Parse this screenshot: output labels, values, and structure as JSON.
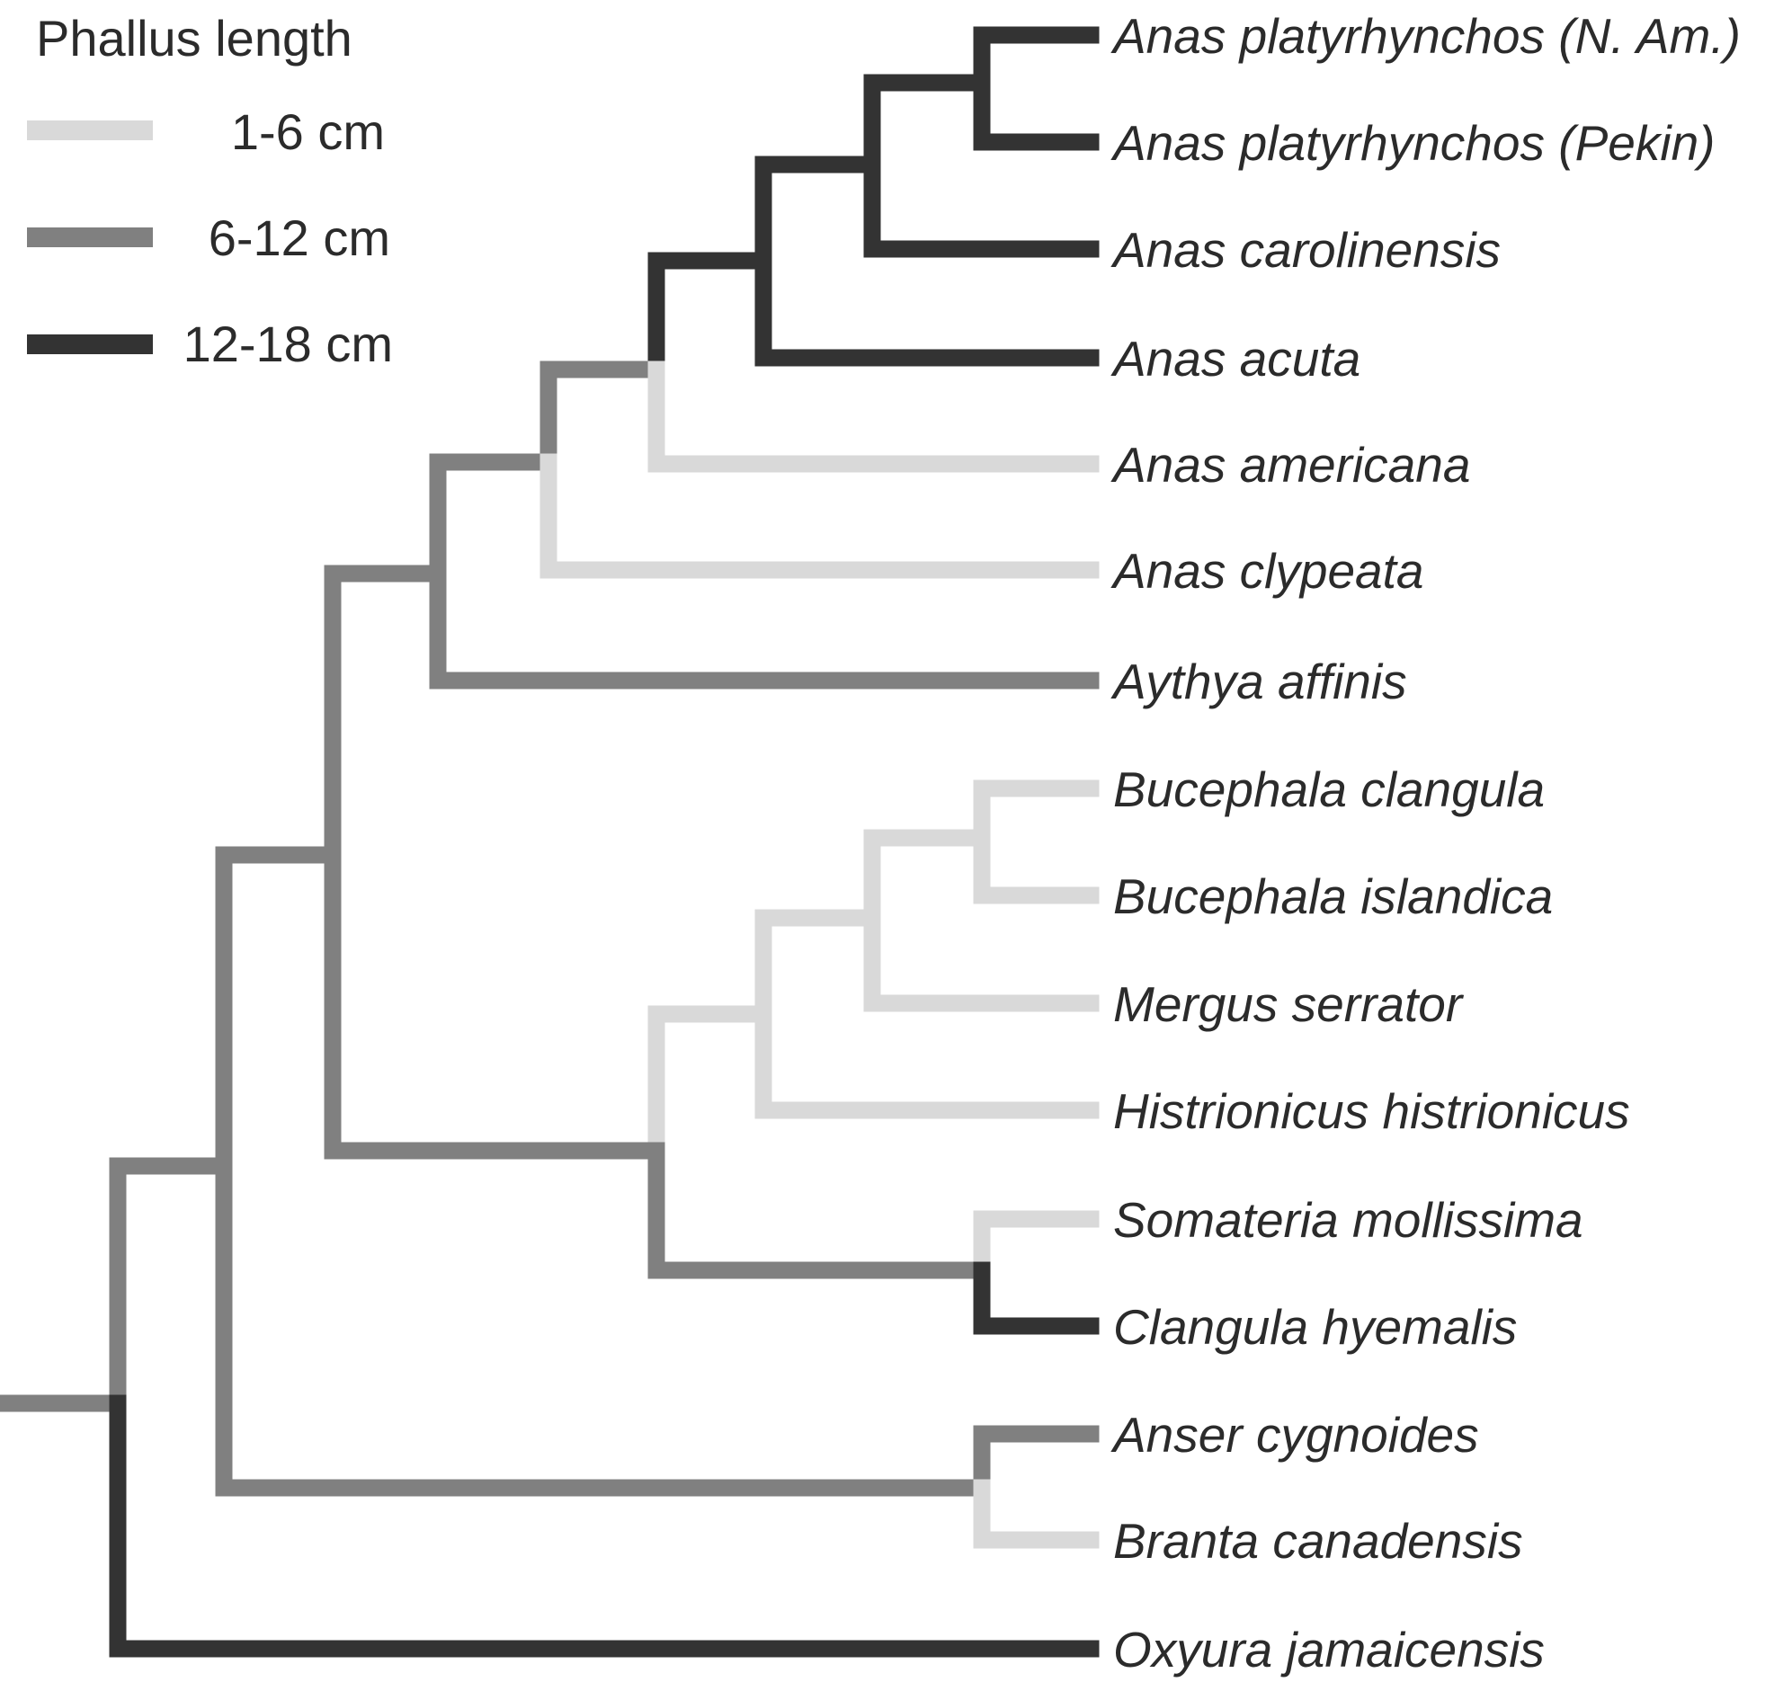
{
  "legend": {
    "title": "Phallus length",
    "items": [
      {
        "label": "1-6 cm",
        "state": "short"
      },
      {
        "label": "6-12 cm",
        "state": "medium"
      },
      {
        "label": "12-18 cm",
        "state": "long"
      }
    ]
  },
  "colors": {
    "short": "#d9d9d9",
    "medium": "#808080",
    "long": "#333333"
  },
  "taxa": [
    "Anas platyrhynchos (N. Am.)",
    "Anas platyrhynchos (Pekin)",
    "Anas carolinensis",
    "Anas acuta",
    "Anas americana",
    "Anas clypeata",
    "Aythya affinis",
    "Bucephala clangula",
    "Bucephala islandica",
    "Mergus serrator",
    "Histrionicus histrionicus",
    "Somateria mollissima",
    "Clangula hyemalis",
    "Anser cygnoides",
    "Branta canadensis",
    "Oxyura jamaicensis"
  ]
}
